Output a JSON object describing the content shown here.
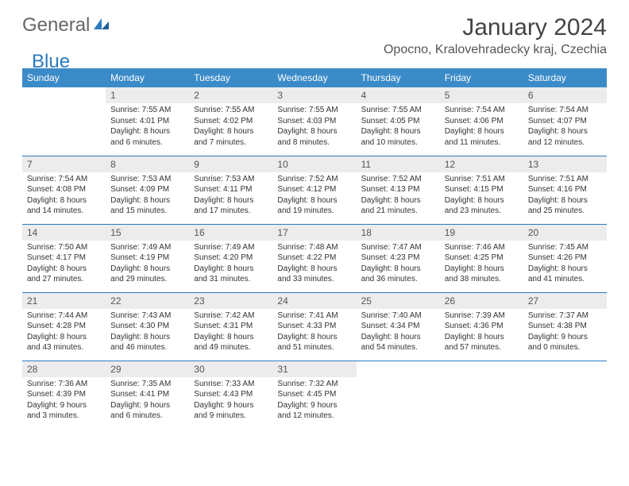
{
  "logo": {
    "part1": "General",
    "part2": "Blue"
  },
  "title": "January 2024",
  "location": "Opocno, Kralovehradecky kraj, Czechia",
  "header_color": "#3b8bc9",
  "divider_color": "#2b7bbf",
  "daynum_bg": "#ececec",
  "weekdays": [
    "Sunday",
    "Monday",
    "Tuesday",
    "Wednesday",
    "Thursday",
    "Friday",
    "Saturday"
  ],
  "weeks": [
    [
      null,
      {
        "n": "1",
        "sr": "Sunrise: 7:55 AM",
        "ss": "Sunset: 4:01 PM",
        "d1": "Daylight: 8 hours",
        "d2": "and 6 minutes."
      },
      {
        "n": "2",
        "sr": "Sunrise: 7:55 AM",
        "ss": "Sunset: 4:02 PM",
        "d1": "Daylight: 8 hours",
        "d2": "and 7 minutes."
      },
      {
        "n": "3",
        "sr": "Sunrise: 7:55 AM",
        "ss": "Sunset: 4:03 PM",
        "d1": "Daylight: 8 hours",
        "d2": "and 8 minutes."
      },
      {
        "n": "4",
        "sr": "Sunrise: 7:55 AM",
        "ss": "Sunset: 4:05 PM",
        "d1": "Daylight: 8 hours",
        "d2": "and 10 minutes."
      },
      {
        "n": "5",
        "sr": "Sunrise: 7:54 AM",
        "ss": "Sunset: 4:06 PM",
        "d1": "Daylight: 8 hours",
        "d2": "and 11 minutes."
      },
      {
        "n": "6",
        "sr": "Sunrise: 7:54 AM",
        "ss": "Sunset: 4:07 PM",
        "d1": "Daylight: 8 hours",
        "d2": "and 12 minutes."
      }
    ],
    [
      {
        "n": "7",
        "sr": "Sunrise: 7:54 AM",
        "ss": "Sunset: 4:08 PM",
        "d1": "Daylight: 8 hours",
        "d2": "and 14 minutes."
      },
      {
        "n": "8",
        "sr": "Sunrise: 7:53 AM",
        "ss": "Sunset: 4:09 PM",
        "d1": "Daylight: 8 hours",
        "d2": "and 15 minutes."
      },
      {
        "n": "9",
        "sr": "Sunrise: 7:53 AM",
        "ss": "Sunset: 4:11 PM",
        "d1": "Daylight: 8 hours",
        "d2": "and 17 minutes."
      },
      {
        "n": "10",
        "sr": "Sunrise: 7:52 AM",
        "ss": "Sunset: 4:12 PM",
        "d1": "Daylight: 8 hours",
        "d2": "and 19 minutes."
      },
      {
        "n": "11",
        "sr": "Sunrise: 7:52 AM",
        "ss": "Sunset: 4:13 PM",
        "d1": "Daylight: 8 hours",
        "d2": "and 21 minutes."
      },
      {
        "n": "12",
        "sr": "Sunrise: 7:51 AM",
        "ss": "Sunset: 4:15 PM",
        "d1": "Daylight: 8 hours",
        "d2": "and 23 minutes."
      },
      {
        "n": "13",
        "sr": "Sunrise: 7:51 AM",
        "ss": "Sunset: 4:16 PM",
        "d1": "Daylight: 8 hours",
        "d2": "and 25 minutes."
      }
    ],
    [
      {
        "n": "14",
        "sr": "Sunrise: 7:50 AM",
        "ss": "Sunset: 4:17 PM",
        "d1": "Daylight: 8 hours",
        "d2": "and 27 minutes."
      },
      {
        "n": "15",
        "sr": "Sunrise: 7:49 AM",
        "ss": "Sunset: 4:19 PM",
        "d1": "Daylight: 8 hours",
        "d2": "and 29 minutes."
      },
      {
        "n": "16",
        "sr": "Sunrise: 7:49 AM",
        "ss": "Sunset: 4:20 PM",
        "d1": "Daylight: 8 hours",
        "d2": "and 31 minutes."
      },
      {
        "n": "17",
        "sr": "Sunrise: 7:48 AM",
        "ss": "Sunset: 4:22 PM",
        "d1": "Daylight: 8 hours",
        "d2": "and 33 minutes."
      },
      {
        "n": "18",
        "sr": "Sunrise: 7:47 AM",
        "ss": "Sunset: 4:23 PM",
        "d1": "Daylight: 8 hours",
        "d2": "and 36 minutes."
      },
      {
        "n": "19",
        "sr": "Sunrise: 7:46 AM",
        "ss": "Sunset: 4:25 PM",
        "d1": "Daylight: 8 hours",
        "d2": "and 38 minutes."
      },
      {
        "n": "20",
        "sr": "Sunrise: 7:45 AM",
        "ss": "Sunset: 4:26 PM",
        "d1": "Daylight: 8 hours",
        "d2": "and 41 minutes."
      }
    ],
    [
      {
        "n": "21",
        "sr": "Sunrise: 7:44 AM",
        "ss": "Sunset: 4:28 PM",
        "d1": "Daylight: 8 hours",
        "d2": "and 43 minutes."
      },
      {
        "n": "22",
        "sr": "Sunrise: 7:43 AM",
        "ss": "Sunset: 4:30 PM",
        "d1": "Daylight: 8 hours",
        "d2": "and 46 minutes."
      },
      {
        "n": "23",
        "sr": "Sunrise: 7:42 AM",
        "ss": "Sunset: 4:31 PM",
        "d1": "Daylight: 8 hours",
        "d2": "and 49 minutes."
      },
      {
        "n": "24",
        "sr": "Sunrise: 7:41 AM",
        "ss": "Sunset: 4:33 PM",
        "d1": "Daylight: 8 hours",
        "d2": "and 51 minutes."
      },
      {
        "n": "25",
        "sr": "Sunrise: 7:40 AM",
        "ss": "Sunset: 4:34 PM",
        "d1": "Daylight: 8 hours",
        "d2": "and 54 minutes."
      },
      {
        "n": "26",
        "sr": "Sunrise: 7:39 AM",
        "ss": "Sunset: 4:36 PM",
        "d1": "Daylight: 8 hours",
        "d2": "and 57 minutes."
      },
      {
        "n": "27",
        "sr": "Sunrise: 7:37 AM",
        "ss": "Sunset: 4:38 PM",
        "d1": "Daylight: 9 hours",
        "d2": "and 0 minutes."
      }
    ],
    [
      {
        "n": "28",
        "sr": "Sunrise: 7:36 AM",
        "ss": "Sunset: 4:39 PM",
        "d1": "Daylight: 9 hours",
        "d2": "and 3 minutes."
      },
      {
        "n": "29",
        "sr": "Sunrise: 7:35 AM",
        "ss": "Sunset: 4:41 PM",
        "d1": "Daylight: 9 hours",
        "d2": "and 6 minutes."
      },
      {
        "n": "30",
        "sr": "Sunrise: 7:33 AM",
        "ss": "Sunset: 4:43 PM",
        "d1": "Daylight: 9 hours",
        "d2": "and 9 minutes."
      },
      {
        "n": "31",
        "sr": "Sunrise: 7:32 AM",
        "ss": "Sunset: 4:45 PM",
        "d1": "Daylight: 9 hours",
        "d2": "and 12 minutes."
      },
      null,
      null,
      null
    ]
  ]
}
